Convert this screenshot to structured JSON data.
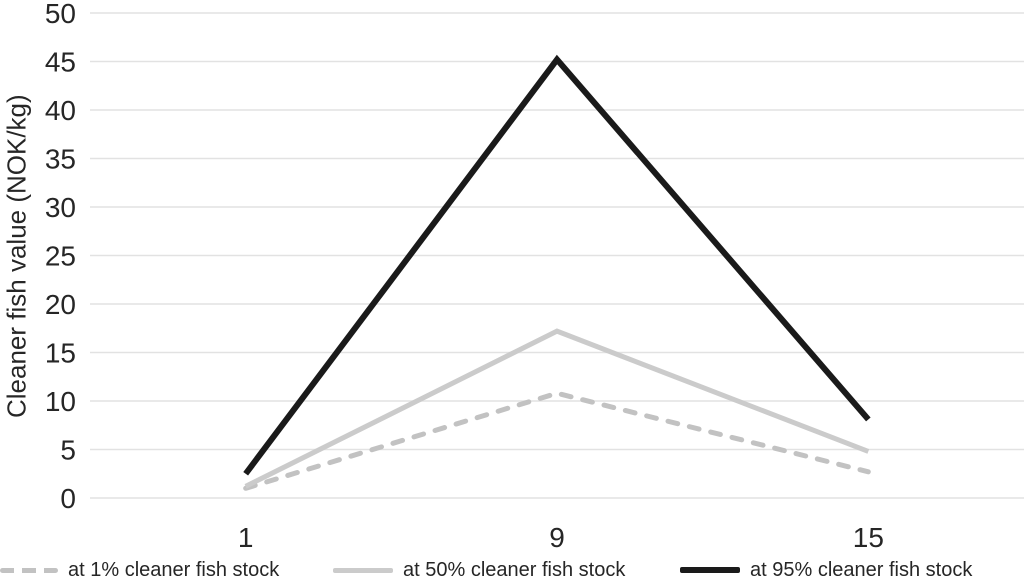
{
  "chart_data": {
    "type": "line",
    "title": "",
    "xlabel": "",
    "ylabel": "Cleaner fish value (NOK/kg)",
    "x_categories": [
      "1",
      "9",
      "15"
    ],
    "y_ticks": [
      0,
      5,
      10,
      15,
      20,
      25,
      30,
      35,
      40,
      45,
      50
    ],
    "ylim": [
      0,
      50
    ],
    "grid": true,
    "legend_position": "bottom",
    "series": [
      {
        "name": "at 1% cleaner fish stock",
        "values": [
          1.0,
          10.8,
          2.7
        ],
        "color": "#c2c2c2",
        "style": "dashed",
        "width": 5
      },
      {
        "name": "at 50% cleaner fish stock",
        "values": [
          1.2,
          17.2,
          4.8
        ],
        "color": "#cbcbcb",
        "style": "solid",
        "width": 5
      },
      {
        "name": "at 95% cleaner fish stock",
        "values": [
          2.5,
          45.2,
          8.1
        ],
        "color": "#1a1a1a",
        "style": "solid",
        "width": 6
      }
    ]
  },
  "colors": {
    "gridline": "#e2e2e2",
    "tick_text": "#262626",
    "background": "#ffffff"
  },
  "layout_values": {
    "tick_font_px": 28,
    "legend_font_px": 20
  }
}
